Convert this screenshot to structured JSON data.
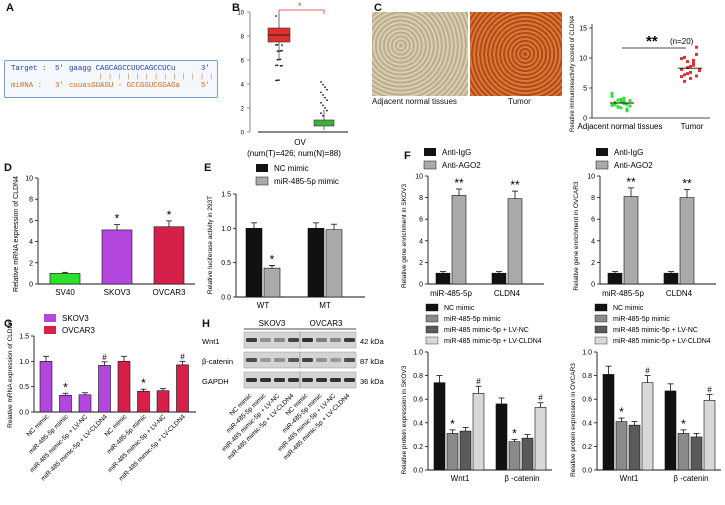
{
  "panels": {
    "A": {
      "letter": "A",
      "target_label": "Target :",
      "target_5": "5'",
      "target_seq": "gaagg CAGCAGCCUUCAGCCUCu",
      "target_3": "3'",
      "mirna_label": "miRNA :",
      "mirna_3": "3'",
      "mirna_seq": "cuuasGUAGU - GCCGGUCGGAGa",
      "mirna_5": "5'",
      "colors": {
        "target": "#1f3fa8",
        "mirna": "#d46a1a",
        "border": "#7aa0c8",
        "bg": "#f4f8fc"
      }
    },
    "B": {
      "letter": "B",
      "x_group": "OV",
      "caption": "(num(T)=426; num(N)=88)",
      "yticks": [
        "0",
        "2",
        "4",
        "6",
        "8",
        "10"
      ],
      "sig_mark": "*",
      "colors": {
        "tumor": "#e03030",
        "normal": "#3fae3f"
      }
    },
    "C": {
      "letter": "C",
      "label_normal": "Adjacent normal tissues",
      "label_tumor": "Tumor",
      "sig": "**",
      "n_note": "(n=20)",
      "ylabel": "Relative immunoreactivity scored of CLDN4",
      "yticks": [
        "0",
        "5",
        "10",
        "15"
      ],
      "xlabels": [
        "Adjacent normal tissues",
        "Tumor"
      ]
    },
    "D": {
      "letter": "D",
      "ylabel": "Relative mRNA expression of CLDN4",
      "yticks": [
        "0",
        "2",
        "4",
        "6",
        "8",
        "10"
      ],
      "categories": [
        "SV40",
        "SKOV3",
        "OVCAR3"
      ],
      "values": [
        1.0,
        5.1,
        5.4
      ],
      "errors": [
        0.1,
        0.5,
        0.55
      ],
      "sig": [
        "",
        "*",
        "*"
      ],
      "colors": [
        "#2ee02e",
        "#b446e0",
        "#d6204a"
      ]
    },
    "E": {
      "letter": "E",
      "ylabel": "Relative luciferase activity in 293T",
      "yticks": [
        "0.0",
        "0.5",
        "1.0",
        "1.5"
      ],
      "legend": [
        "NC mimic",
        "miR-485-5p mimic"
      ],
      "groups": [
        "WT",
        "MT"
      ],
      "nc": [
        1.0,
        1.0
      ],
      "mimic": [
        0.42,
        0.98
      ],
      "nc_err": [
        0.08,
        0.08
      ],
      "mimic_err": [
        0.04,
        0.08
      ],
      "sig": [
        "*",
        ""
      ]
    },
    "F": {
      "letter": "F",
      "legend": [
        "Anti-IgG",
        "Anti-AGO2"
      ],
      "groups": [
        "miR-485-5p",
        "CLDN4"
      ],
      "left": {
        "ylabel": "Relative gene enrichment in SKOV3",
        "yticks": [
          "0",
          "2",
          "4",
          "6",
          "8",
          "10"
        ],
        "igg": [
          1.0,
          1.0
        ],
        "ago2": [
          8.2,
          7.9
        ],
        "igg_err": [
          0.15,
          0.15
        ],
        "ago2_err": [
          0.6,
          0.7
        ],
        "sig": [
          "**",
          "**"
        ]
      },
      "right": {
        "ylabel": "Relative gene enrichment in OVCAR3",
        "yticks": [
          "0",
          "2",
          "4",
          "6",
          "8",
          "10"
        ],
        "igg": [
          1.0,
          1.0
        ],
        "ago2": [
          8.1,
          8.0
        ],
        "igg_err": [
          0.15,
          0.15
        ],
        "ago2_err": [
          0.8,
          0.75
        ],
        "sig": [
          "**",
          "**"
        ]
      }
    },
    "G": {
      "letter": "G",
      "ylabel": "Relative mRNA expression of CLDN4",
      "yticks": [
        "0.0",
        "0.5",
        "1.0",
        "1.5"
      ],
      "legend": [
        "SKOV3",
        "OVCAR3"
      ],
      "categories": [
        "NC mimic",
        "miR-485-5p mimic",
        "miR-485 mimic-5p + LV-NC",
        "miR-485 mimic-5p + LV-CLDN4",
        "NC mimic",
        "miR-485-5p mimic",
        "miR-485 mimic-5p + LV-NC",
        "miR-485 mimic-5p + LV-CLDN4"
      ],
      "values": [
        1.0,
        0.33,
        0.34,
        0.92,
        1.0,
        0.41,
        0.42,
        0.93
      ],
      "errors": [
        0.1,
        0.04,
        0.04,
        0.07,
        0.1,
        0.04,
        0.04,
        0.07
      ],
      "sig": [
        "",
        "*",
        "",
        "#",
        "",
        "*",
        "",
        "#"
      ],
      "colors": {
        "SKOV3": "#b446e0",
        "OVCAR3": "#d6204a"
      }
    },
    "H": {
      "letter": "H",
      "col_skov3": "SKOV3",
      "col_ovcar3": "OVCAR3",
      "rows": [
        {
          "protein": "Wnt1",
          "kda": "42 kDa"
        },
        {
          "protein": "β-catenin",
          "kda": "87 kDa"
        },
        {
          "protein": "GAPDH",
          "kda": "36 kDa"
        }
      ],
      "lanes": [
        "NC mimic",
        "miR-485-5p mimic",
        "miR-485 mimic-5p + LV-NC",
        "miR-485 mimic-5p + LV-CLDN4",
        "NC mimic",
        "miR-485-5p mimic",
        "miR-485 mimic-5p + LV-NC",
        "miR-485 mimic-5p + LV-CLDN4"
      ]
    },
    "I": {
      "legend": [
        "NC mimic",
        "miR-485-5p mimic",
        "miR-485 mimic-5p + LV-NC",
        "miR-485 mimic-5p + LV-CLDN4"
      ],
      "groups": [
        "Wnt1",
        "β -catenin"
      ],
      "colors": [
        "#111111",
        "#8a8a8a",
        "#5a5a5a",
        "#d8d8d8"
      ],
      "left": {
        "ylabel": "Relative protein expression in SKOV3",
        "yticks": [
          "0.0",
          "0.2",
          "0.4",
          "0.6",
          "0.8",
          "1.0"
        ],
        "values": [
          [
            0.74,
            0.31,
            0.33,
            0.65
          ],
          [
            0.56,
            0.24,
            0.27,
            0.53
          ]
        ],
        "errors": [
          [
            0.06,
            0.03,
            0.03,
            0.06
          ],
          [
            0.05,
            0.02,
            0.03,
            0.04
          ]
        ],
        "sig": [
          [
            "",
            "*",
            "",
            "#"
          ],
          [
            "",
            "*",
            "",
            "#"
          ]
        ]
      },
      "right": {
        "ylabel": "Relative protein expression in OVCAR3",
        "yticks": [
          "0.0",
          "0.2",
          "0.4",
          "0.6",
          "0.8",
          "1.0"
        ],
        "values": [
          [
            0.81,
            0.41,
            0.38,
            0.74
          ],
          [
            0.67,
            0.31,
            0.28,
            0.59
          ]
        ],
        "errors": [
          [
            0.07,
            0.03,
            0.03,
            0.06
          ],
          [
            0.06,
            0.03,
            0.03,
            0.05
          ]
        ],
        "sig": [
          [
            "",
            "*",
            "",
            "#"
          ],
          [
            "",
            "*",
            "",
            "#"
          ]
        ]
      }
    }
  },
  "chart_data": [
    {
      "type": "bar",
      "title": "",
      "ylabel": "Relative mRNA expression of CLDN4",
      "categories": [
        "SV40",
        "SKOV3",
        "OVCAR3"
      ],
      "values": [
        1.0,
        5.1,
        5.4
      ],
      "ylim": [
        0,
        10
      ]
    },
    {
      "type": "bar",
      "ylabel": "Relative luciferase activity in 293T",
      "categories": [
        "WT",
        "MT"
      ],
      "series": [
        {
          "name": "NC mimic",
          "values": [
            1.0,
            1.0
          ]
        },
        {
          "name": "miR-485-5p mimic",
          "values": [
            0.42,
            0.98
          ]
        }
      ],
      "ylim": [
        0,
        1.5
      ]
    },
    {
      "type": "bar",
      "ylabel": "Relative gene enrichment in SKOV3",
      "categories": [
        "miR-485-5p",
        "CLDN4"
      ],
      "series": [
        {
          "name": "Anti-IgG",
          "values": [
            1.0,
            1.0
          ]
        },
        {
          "name": "Anti-AGO2",
          "values": [
            8.2,
            7.9
          ]
        }
      ],
      "ylim": [
        0,
        10
      ]
    },
    {
      "type": "bar",
      "ylabel": "Relative gene enrichment in OVCAR3",
      "categories": [
        "miR-485-5p",
        "CLDN4"
      ],
      "series": [
        {
          "name": "Anti-IgG",
          "values": [
            1.0,
            1.0
          ]
        },
        {
          "name": "Anti-AGO2",
          "values": [
            8.1,
            8.0
          ]
        }
      ],
      "ylim": [
        0,
        10
      ]
    },
    {
      "type": "bar",
      "ylabel": "Relative mRNA expression of CLDN4",
      "categories": [
        "NC mimic",
        "miR-485-5p mimic",
        "miR-485 mimic-5p + LV-NC",
        "miR-485 mimic-5p + LV-CLDN4",
        "NC mimic",
        "miR-485-5p mimic",
        "miR-485 mimic-5p + LV-NC",
        "miR-485 mimic-5p + LV-CLDN4"
      ],
      "series": [
        {
          "name": "SKOV3",
          "values": [
            1.0,
            0.33,
            0.34,
            0.92,
            null,
            null,
            null,
            null
          ]
        },
        {
          "name": "OVCAR3",
          "values": [
            null,
            null,
            null,
            null,
            1.0,
            0.41,
            0.42,
            0.93
          ]
        }
      ],
      "ylim": [
        0,
        1.5
      ]
    },
    {
      "type": "bar",
      "ylabel": "Relative protein expression in SKOV3",
      "categories": [
        "Wnt1",
        "β -catenin"
      ],
      "series": [
        {
          "name": "NC mimic",
          "values": [
            0.74,
            0.56
          ]
        },
        {
          "name": "miR-485-5p mimic",
          "values": [
            0.31,
            0.24
          ]
        },
        {
          "name": "miR-485 mimic-5p + LV-NC",
          "values": [
            0.33,
            0.27
          ]
        },
        {
          "name": "miR-485 mimic-5p + LV-CLDN4",
          "values": [
            0.65,
            0.53
          ]
        }
      ],
      "ylim": [
        0,
        1.0
      ]
    },
    {
      "type": "bar",
      "ylabel": "Relative protein expression in OVCAR3",
      "categories": [
        "Wnt1",
        "β -catenin"
      ],
      "series": [
        {
          "name": "NC mimic",
          "values": [
            0.81,
            0.67
          ]
        },
        {
          "name": "miR-485-5p mimic",
          "values": [
            0.41,
            0.31
          ]
        },
        {
          "name": "miR-485 mimic-5p + LV-NC",
          "values": [
            0.38,
            0.28
          ]
        },
        {
          "name": "miR-485 mimic-5p + LV-CLDN4",
          "values": [
            0.74,
            0.59
          ]
        }
      ],
      "ylim": [
        0,
        1.0
      ]
    }
  ]
}
